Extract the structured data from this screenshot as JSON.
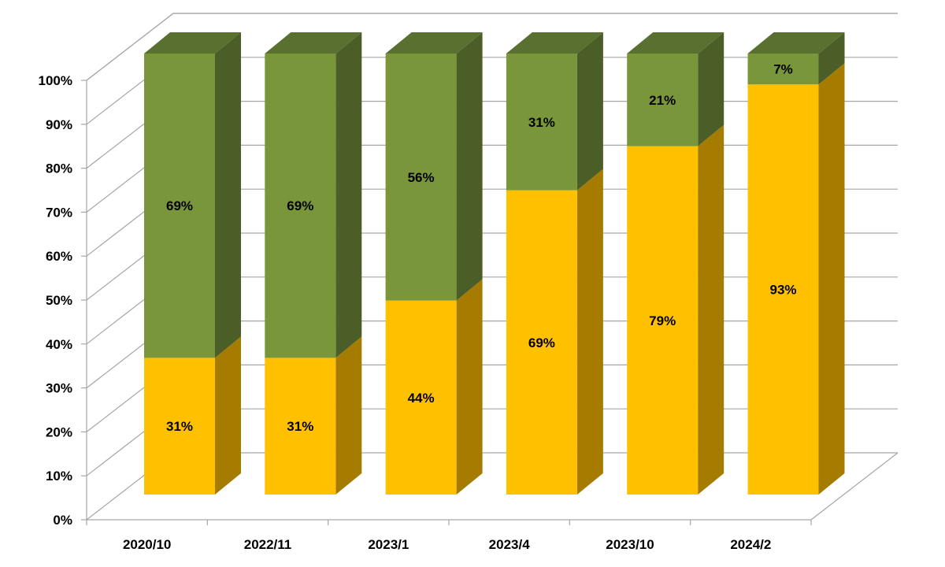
{
  "chart_data": {
    "type": "bar",
    "stacked": true,
    "percent_stacked": true,
    "three_d": true,
    "categories": [
      "2020/10",
      "2022/11",
      "2023/1",
      "2023/4",
      "2023/10",
      "2024/2"
    ],
    "series": [
      {
        "values": [
          31,
          31,
          44,
          69,
          79,
          93
        ],
        "labels": [
          "31%",
          "31%",
          "44%",
          "69%",
          "79%",
          "93%"
        ],
        "color": "#FFC000",
        "side_color": "#A67C00",
        "top_color": "#D9A300"
      },
      {
        "values": [
          69,
          69,
          56,
          31,
          21,
          7
        ],
        "labels": [
          "69%",
          "69%",
          "56%",
          "31%",
          "21%",
          "7%"
        ],
        "color": "#7A963A",
        "side_color": "#4B5E28",
        "top_color": "#5A7030"
      }
    ],
    "yticks": [
      "0%",
      "10%",
      "20%",
      "30%",
      "40%",
      "50%",
      "60%",
      "70%",
      "80%",
      "90%",
      "100%"
    ],
    "ylim": [
      0,
      100
    ],
    "grid": true,
    "legend": "none",
    "title": "",
    "xlabel": "",
    "ylabel": ""
  }
}
